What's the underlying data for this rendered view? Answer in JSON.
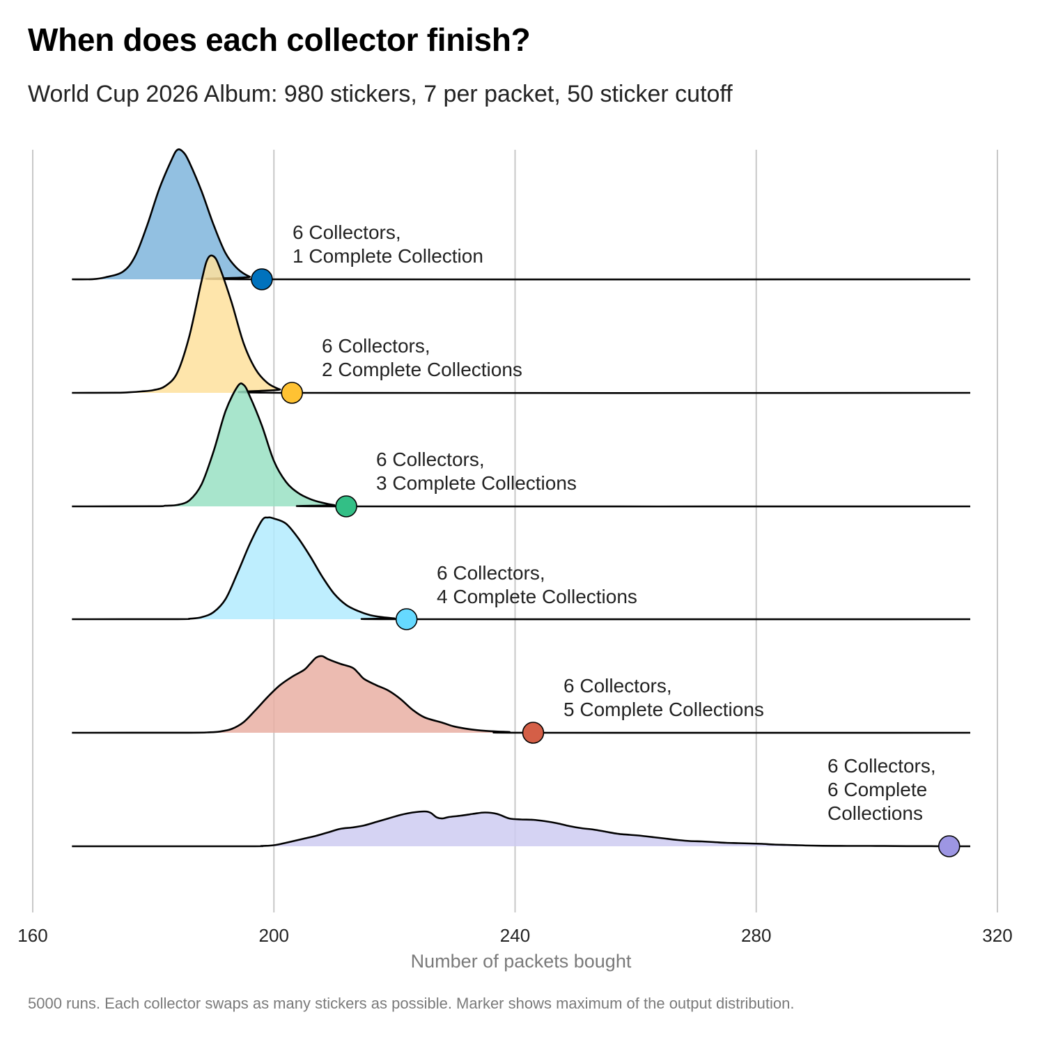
{
  "title": "When does each collector finish?",
  "subtitle": "World Cup 2026 Album: 980 stickers, 7 per packet, 50 sticker cutoff",
  "caption": "5000 runs. Each collector swaps as many stickers as possible. Marker shows maximum of the output distribution.",
  "chart_data": {
    "type": "area",
    "xlabel": "Number of packets bought",
    "xlim": [
      160,
      320
    ],
    "xticks": [
      "160",
      "200",
      "240",
      "280",
      "320"
    ],
    "xtick_values": [
      160,
      200,
      240,
      280,
      320
    ],
    "grid": true,
    "series": [
      {
        "name": "6 Collectors, 1 Complete Collection",
        "label_lines": [
          "6 Collectors,",
          "1 Complete Collection"
        ],
        "color": "#0072BD",
        "fill": "#7FB5DC",
        "marker_x": 198,
        "points": [
          [
            166.5,
            0
          ],
          [
            170,
            0.001
          ],
          [
            172,
            0.015
          ],
          [
            175,
            0.06
          ],
          [
            177,
            0.18
          ],
          [
            179,
            0.42
          ],
          [
            181,
            0.7
          ],
          [
            183,
            0.92
          ],
          [
            184,
            1.0
          ],
          [
            185,
            0.98
          ],
          [
            186,
            0.9
          ],
          [
            188,
            0.68
          ],
          [
            190,
            0.42
          ],
          [
            192,
            0.2
          ],
          [
            194,
            0.08
          ],
          [
            196,
            0.02
          ],
          [
            198,
            0.0
          ],
          [
            315.5,
            0
          ]
        ]
      },
      {
        "name": "6 Collectors, 2 Complete Collections",
        "label_lines": [
          "6 Collectors,",
          "2 Complete Collections"
        ],
        "color": "#FFC233",
        "fill": "#FEE19C",
        "marker_x": 203,
        "points": [
          [
            166.5,
            0
          ],
          [
            174,
            0.001
          ],
          [
            176,
            0.004
          ],
          [
            178,
            0.01
          ],
          [
            180,
            0.02
          ],
          [
            182,
            0.05
          ],
          [
            184,
            0.15
          ],
          [
            186,
            0.42
          ],
          [
            188,
            0.82
          ],
          [
            189,
            0.98
          ],
          [
            190,
            1.0
          ],
          [
            191,
            0.92
          ],
          [
            193,
            0.66
          ],
          [
            195,
            0.36
          ],
          [
            197,
            0.17
          ],
          [
            199,
            0.07
          ],
          [
            201,
            0.025
          ],
          [
            203,
            0.0
          ],
          [
            315.5,
            0
          ]
        ]
      },
      {
        "name": "6 Collectors, 3 Complete Collections",
        "label_lines": [
          "6 Collectors,",
          "3 Complete Collections"
        ],
        "color": "#33BF86",
        "fill": "#99E1C3",
        "marker_x": 212,
        "points": [
          [
            166.5,
            0
          ],
          [
            180,
            0.001
          ],
          [
            182,
            0.005
          ],
          [
            184,
            0.012
          ],
          [
            186,
            0.05
          ],
          [
            188,
            0.18
          ],
          [
            190,
            0.45
          ],
          [
            192,
            0.78
          ],
          [
            194,
            0.98
          ],
          [
            195,
            0.99
          ],
          [
            196,
            0.9
          ],
          [
            198,
            0.66
          ],
          [
            200,
            0.37
          ],
          [
            202,
            0.2
          ],
          [
            204,
            0.11
          ],
          [
            206,
            0.06
          ],
          [
            208,
            0.03
          ],
          [
            210,
            0.01
          ],
          [
            212,
            0.0
          ],
          [
            315.5,
            0
          ]
        ]
      },
      {
        "name": "6 Collectors, 4 Complete Collections",
        "label_lines": [
          "6 Collectors,",
          "4 Complete Collections"
        ],
        "color": "#66D9FF",
        "fill": "#B3EBFE",
        "marker_x": 222,
        "points": [
          [
            166.5,
            0
          ],
          [
            184,
            0.001
          ],
          [
            186,
            0.005
          ],
          [
            188,
            0.02
          ],
          [
            190,
            0.07
          ],
          [
            192,
            0.2
          ],
          [
            194,
            0.46
          ],
          [
            196,
            0.74
          ],
          [
            198,
            0.97
          ],
          [
            199,
            1.0
          ],
          [
            200,
            0.99
          ],
          [
            202,
            0.94
          ],
          [
            204,
            0.8
          ],
          [
            206,
            0.62
          ],
          [
            208,
            0.42
          ],
          [
            210,
            0.25
          ],
          [
            212,
            0.14
          ],
          [
            214,
            0.08
          ],
          [
            216,
            0.04
          ],
          [
            218,
            0.02
          ],
          [
            220,
            0.008
          ],
          [
            222,
            0.0
          ],
          [
            315.5,
            0
          ]
        ]
      },
      {
        "name": "6 Collectors, 5 Complete Collections",
        "label_lines": [
          "6 Collectors,",
          "5 Complete Collections"
        ],
        "color": "#D45F47",
        "fill": "#E9AFA3",
        "marker_x": 243,
        "points": [
          [
            166.5,
            0
          ],
          [
            186,
            0.001
          ],
          [
            189,
            0.005
          ],
          [
            191,
            0.015
          ],
          [
            193,
            0.05
          ],
          [
            195,
            0.14
          ],
          [
            197,
            0.3
          ],
          [
            199,
            0.47
          ],
          [
            201,
            0.62
          ],
          [
            203,
            0.73
          ],
          [
            205,
            0.82
          ],
          [
            206,
            0.9
          ],
          [
            207,
            0.98
          ],
          [
            208,
            1.0
          ],
          [
            209,
            0.96
          ],
          [
            211,
            0.9
          ],
          [
            213,
            0.85
          ],
          [
            214,
            0.78
          ],
          [
            215,
            0.7
          ],
          [
            217,
            0.62
          ],
          [
            219,
            0.55
          ],
          [
            221,
            0.44
          ],
          [
            223,
            0.3
          ],
          [
            225,
            0.2
          ],
          [
            228,
            0.13
          ],
          [
            230,
            0.08
          ],
          [
            233,
            0.04
          ],
          [
            236,
            0.02
          ],
          [
            239,
            0.01
          ],
          [
            243,
            0.0
          ],
          [
            315.5,
            0
          ]
        ]
      },
      {
        "name": "6 Collectors, 6 Complete Collections",
        "label_lines": [
          "6 Collectors,",
          "6 Complete",
          "Collections"
        ],
        "color": "#9D96E3",
        "fill": "#CECBF1",
        "marker_x": 312,
        "points": [
          [
            166.5,
            0
          ],
          [
            195,
            0.001
          ],
          [
            198,
            0.01
          ],
          [
            200,
            0.03
          ],
          [
            202,
            0.1
          ],
          [
            205,
            0.22
          ],
          [
            207,
            0.3
          ],
          [
            209,
            0.4
          ],
          [
            211,
            0.5
          ],
          [
            213,
            0.54
          ],
          [
            215,
            0.6
          ],
          [
            217,
            0.7
          ],
          [
            219,
            0.8
          ],
          [
            221,
            0.9
          ],
          [
            223,
            0.97
          ],
          [
            225,
            1.0
          ],
          [
            226,
            0.96
          ],
          [
            227,
            0.83
          ],
          [
            228,
            0.8
          ],
          [
            229,
            0.84
          ],
          [
            231,
            0.88
          ],
          [
            233,
            0.93
          ],
          [
            235,
            0.97
          ],
          [
            237,
            0.93
          ],
          [
            239,
            0.8
          ],
          [
            241,
            0.77
          ],
          [
            243,
            0.76
          ],
          [
            245,
            0.72
          ],
          [
            247,
            0.66
          ],
          [
            249,
            0.58
          ],
          [
            251,
            0.52
          ],
          [
            253,
            0.48
          ],
          [
            255,
            0.42
          ],
          [
            257,
            0.36
          ],
          [
            259,
            0.33
          ],
          [
            261,
            0.3
          ],
          [
            263,
            0.26
          ],
          [
            265,
            0.22
          ],
          [
            267,
            0.18
          ],
          [
            269,
            0.15
          ],
          [
            271,
            0.14
          ],
          [
            273,
            0.12
          ],
          [
            275,
            0.1
          ],
          [
            277,
            0.09
          ],
          [
            279,
            0.08
          ],
          [
            281,
            0.07
          ],
          [
            283,
            0.05
          ],
          [
            285,
            0.04
          ],
          [
            287,
            0.03
          ],
          [
            289,
            0.02
          ],
          [
            291,
            0.015
          ],
          [
            293,
            0.012
          ],
          [
            295,
            0.01
          ],
          [
            297,
            0.01
          ],
          [
            299,
            0.009
          ],
          [
            301,
            0.008
          ],
          [
            303,
            0.007
          ],
          [
            305,
            0.005
          ],
          [
            307,
            0.004
          ],
          [
            309,
            0.003
          ],
          [
            311,
            0.002
          ],
          [
            312,
            0.0
          ],
          [
            315.5,
            0
          ]
        ]
      }
    ]
  }
}
